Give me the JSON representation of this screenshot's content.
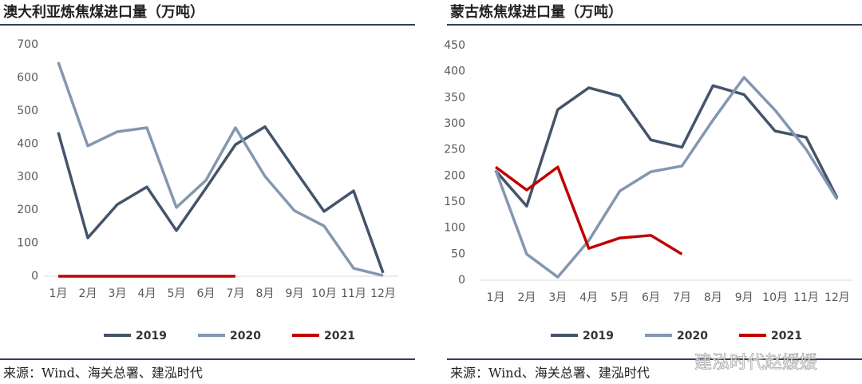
{
  "chart_data": [
    {
      "type": "line",
      "title": "澳大利亚炼焦煤进口量（万吨）",
      "categories": [
        "1月",
        "2月",
        "3月",
        "4月",
        "5月",
        "6月",
        "7月",
        "8月",
        "9月",
        "10月",
        "11月",
        "12月"
      ],
      "series": [
        {
          "name": "2019",
          "color": "#44546a",
          "values": [
            435,
            116,
            217,
            270,
            138,
            266,
            398,
            452,
            323,
            196,
            258,
            10
          ]
        },
        {
          "name": "2020",
          "color": "#8497b0",
          "values": [
            647,
            394,
            437,
            449,
            208,
            290,
            449,
            302,
            198,
            152,
            24,
            2
          ]
        },
        {
          "name": "2021",
          "color": "#c00000",
          "values": [
            0,
            0,
            0,
            0,
            0,
            0,
            0,
            null,
            null,
            null,
            null,
            null
          ]
        }
      ],
      "ylim": [
        0,
        700
      ],
      "yticks": [
        0,
        100,
        200,
        300,
        400,
        500,
        600,
        700
      ],
      "legend": "bottom",
      "source": "来源：Wind、海关总署、建泓时代"
    },
    {
      "type": "line",
      "title": "蒙古炼焦煤进口量（万吨）",
      "categories": [
        "1月",
        "2月",
        "3月",
        "4月",
        "5月",
        "6月",
        "7月",
        "8月",
        "9月",
        "10月",
        "11月",
        "12月"
      ],
      "series": [
        {
          "name": "2019",
          "color": "#44546a",
          "values": [
            210,
            142,
            327,
            369,
            353,
            269,
            255,
            373,
            356,
            286,
            274,
            158
          ]
        },
        {
          "name": "2020",
          "color": "#8497b0",
          "values": [
            211,
            50,
            6,
            76,
            171,
            208,
            219,
            307,
            389,
            326,
            251,
            155
          ]
        },
        {
          "name": "2021",
          "color": "#c00000",
          "values": [
            217,
            173,
            217,
            61,
            81,
            86,
            50,
            null,
            null,
            null,
            null,
            null
          ]
        }
      ],
      "ylim": [
        0,
        450
      ],
      "yticks": [
        0,
        50,
        100,
        150,
        200,
        250,
        300,
        350,
        400,
        450
      ],
      "legend": "bottom",
      "source": "来源：Wind、海关总署、建泓时代"
    }
  ],
  "watermark": "建泓时代赵媛媛"
}
